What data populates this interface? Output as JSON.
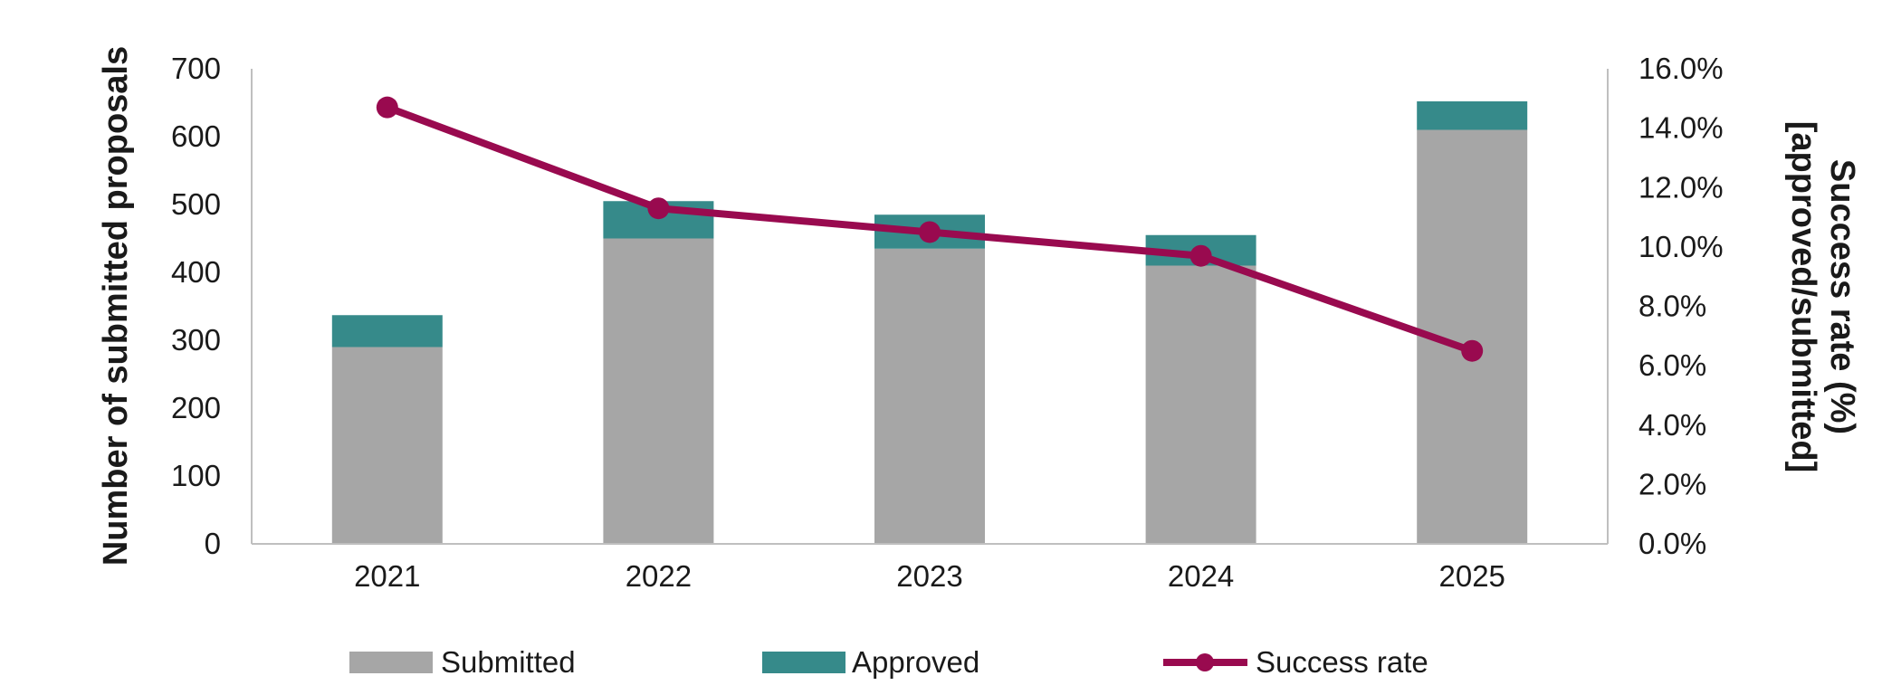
{
  "chart_data": {
    "type": "bar",
    "stacked": true,
    "categories": [
      "2021",
      "2022",
      "2023",
      "2024",
      "2025"
    ],
    "series": [
      {
        "name": "Submitted",
        "type": "bar",
        "axis": "left",
        "color": "#a6a6a6",
        "values": [
          290,
          450,
          435,
          410,
          610
        ]
      },
      {
        "name": "Approved",
        "type": "bar",
        "axis": "left",
        "color": "#368a8a",
        "values": [
          47,
          55,
          50,
          45,
          42
        ]
      },
      {
        "name": "Success rate",
        "type": "line",
        "axis": "right",
        "color": "#990a4f",
        "values": [
          14.7,
          11.3,
          10.5,
          9.7,
          6.5
        ]
      }
    ],
    "ylabel": "Number of submitted proposals",
    "ylim": [
      0,
      700
    ],
    "yticks": [
      0,
      100,
      200,
      300,
      400,
      500,
      600,
      700
    ],
    "y2label_line1": "Success rate (%)",
    "y2label_line2": "[approved/submitted]",
    "y2lim": [
      0,
      16
    ],
    "y2ticks": [
      "0.0%",
      "2.0%",
      "4.0%",
      "6.0%",
      "8.0%",
      "10.0%",
      "12.0%",
      "14.0%",
      "16.0%"
    ],
    "grid": false,
    "legend_position": "bottom"
  }
}
